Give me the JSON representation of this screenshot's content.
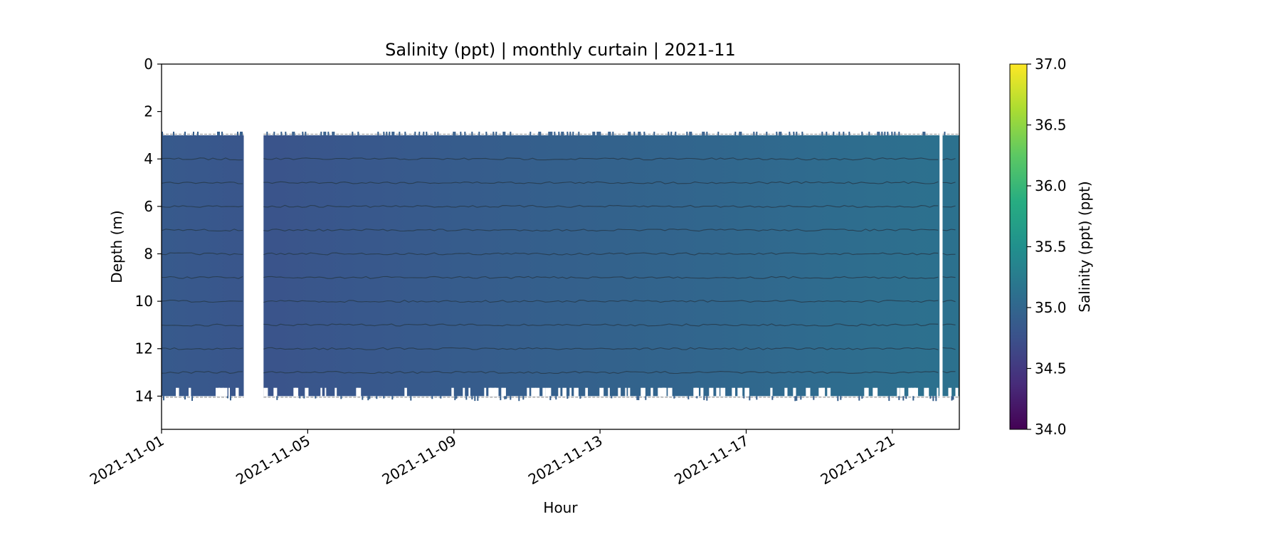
{
  "chart_data": {
    "type": "heatmap",
    "title": "Salinity (ppt) | monthly curtain | 2021-11",
    "xlabel": "Hour",
    "ylabel": "Depth (m)",
    "colorbar_label": "Salinity (ppt) (ppt)",
    "colormap": "viridis",
    "x_range": [
      "2021-11-01",
      "2021-11-22 20:00"
    ],
    "ylim": [
      15.4,
      0
    ],
    "y_inverted": true,
    "x_tick_labels": [
      "2021-11-01",
      "2021-11-05",
      "2021-11-09",
      "2021-11-13",
      "2021-11-17",
      "2021-11-21"
    ],
    "y_tick_values": [
      0,
      2,
      4,
      6,
      8,
      10,
      12,
      14
    ],
    "colorbar_range": [
      34.0,
      37.0
    ],
    "colorbar_ticks": [
      34.0,
      34.5,
      35.0,
      35.5,
      36.0,
      36.5,
      37.0
    ],
    "colorbar_tick_labels": [
      "34.0",
      "34.5",
      "35.0",
      "35.5",
      "36.0",
      "36.5",
      "37.0"
    ],
    "sensor_depths": [
      3,
      4,
      5,
      6,
      7,
      8,
      9,
      10,
      11,
      12,
      13,
      14
    ],
    "data_top_depth": 3.0,
    "data_bottom_depth": 14.0,
    "data_gaps": [
      {
        "start": "2021-11-03 06:00",
        "end": "2021-11-03 19:00"
      },
      {
        "start": "2021-11-22 07:00",
        "end": "2021-11-22 09:00"
      }
    ],
    "salinity_trend": [
      {
        "time": "2021-11-01",
        "value": 34.85
      },
      {
        "time": "2021-11-04",
        "value": 34.78
      },
      {
        "time": "2021-11-08",
        "value": 34.85
      },
      {
        "time": "2021-11-12",
        "value": 34.92
      },
      {
        "time": "2021-11-16",
        "value": 35.0
      },
      {
        "time": "2021-11-20",
        "value": 35.08
      },
      {
        "time": "2021-11-22 20:00",
        "value": 35.12
      }
    ],
    "grid": false
  }
}
